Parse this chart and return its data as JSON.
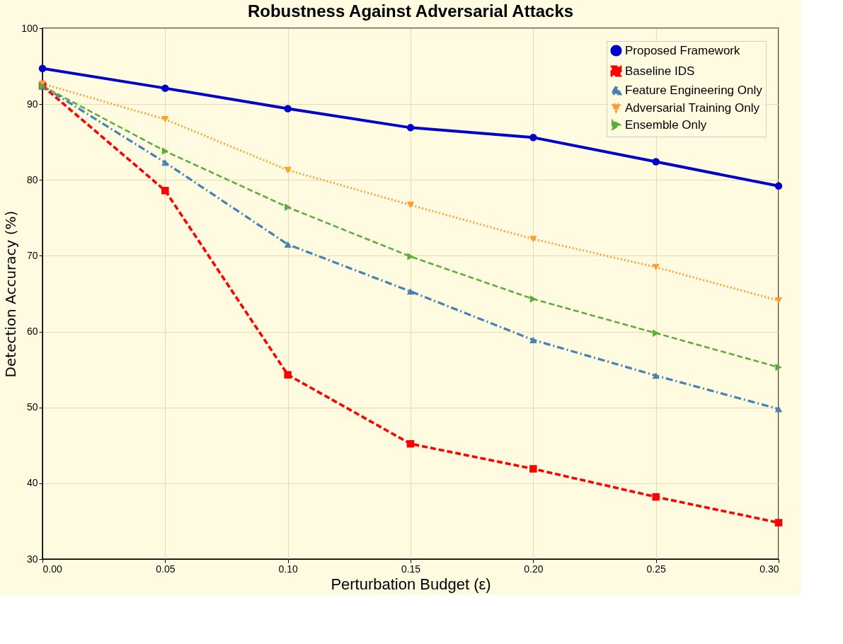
{
  "chart_data": {
    "type": "line",
    "title": "Robustness Against Adversarial Attacks",
    "xlabel": "Perturbation Budget (ε)",
    "ylabel": "Detection Accuracy (%)",
    "x": [
      0,
      0.05,
      0.1,
      0.15,
      0.2,
      0.25,
      0.3
    ],
    "xlim": [
      0,
      0.3
    ],
    "xticks": [
      {
        "value": 0,
        "label": "0.00"
      },
      {
        "value": 0.05,
        "label": "0.05"
      },
      {
        "value": 0.1,
        "label": "0.10"
      },
      {
        "value": 0.15,
        "label": "0.15"
      },
      {
        "value": 0.2,
        "label": "0.20"
      },
      {
        "value": 0.25,
        "label": "0.25"
      },
      {
        "value": 0.3,
        "label": "0.30"
      }
    ],
    "ylim": [
      30,
      100
    ],
    "yticks": [
      30,
      40,
      50,
      60,
      70,
      80,
      90,
      100
    ],
    "grid": true,
    "legend": "top right",
    "series": [
      {
        "name": "Proposed Framework",
        "color": "#0000cd",
        "marker": "circle",
        "line_style": "solid",
        "values": [
          94.7,
          92.1,
          89.4,
          86.9,
          85.6,
          82.4,
          79.2
        ]
      },
      {
        "name": "Baseline IDS",
        "color": "#ff0000",
        "marker": "square",
        "line_style": "dashed",
        "values": [
          92.4,
          78.6,
          54.3,
          45.2,
          41.9,
          38.2,
          34.8
        ]
      },
      {
        "name": "Feature Engineering Only",
        "color": "#4682b4",
        "marker": "triangle",
        "line_style": "dashdot",
        "values": [
          92.4,
          82.3,
          71.5,
          65.3,
          58.9,
          54.2,
          49.8
        ]
      },
      {
        "name": "Adversarial Training Only",
        "color": "#ff9f30",
        "marker": "triangle-down",
        "line_style": "dotted",
        "values": [
          92.7,
          88.0,
          81.3,
          76.7,
          72.2,
          68.5,
          64.1
        ]
      },
      {
        "name": "Ensemble Only",
        "color": "#5aad3a",
        "marker": "triangle-right",
        "line_style": "dashed",
        "values": [
          92.4,
          83.8,
          76.4,
          69.9,
          64.3,
          59.8,
          55.3
        ]
      }
    ]
  }
}
